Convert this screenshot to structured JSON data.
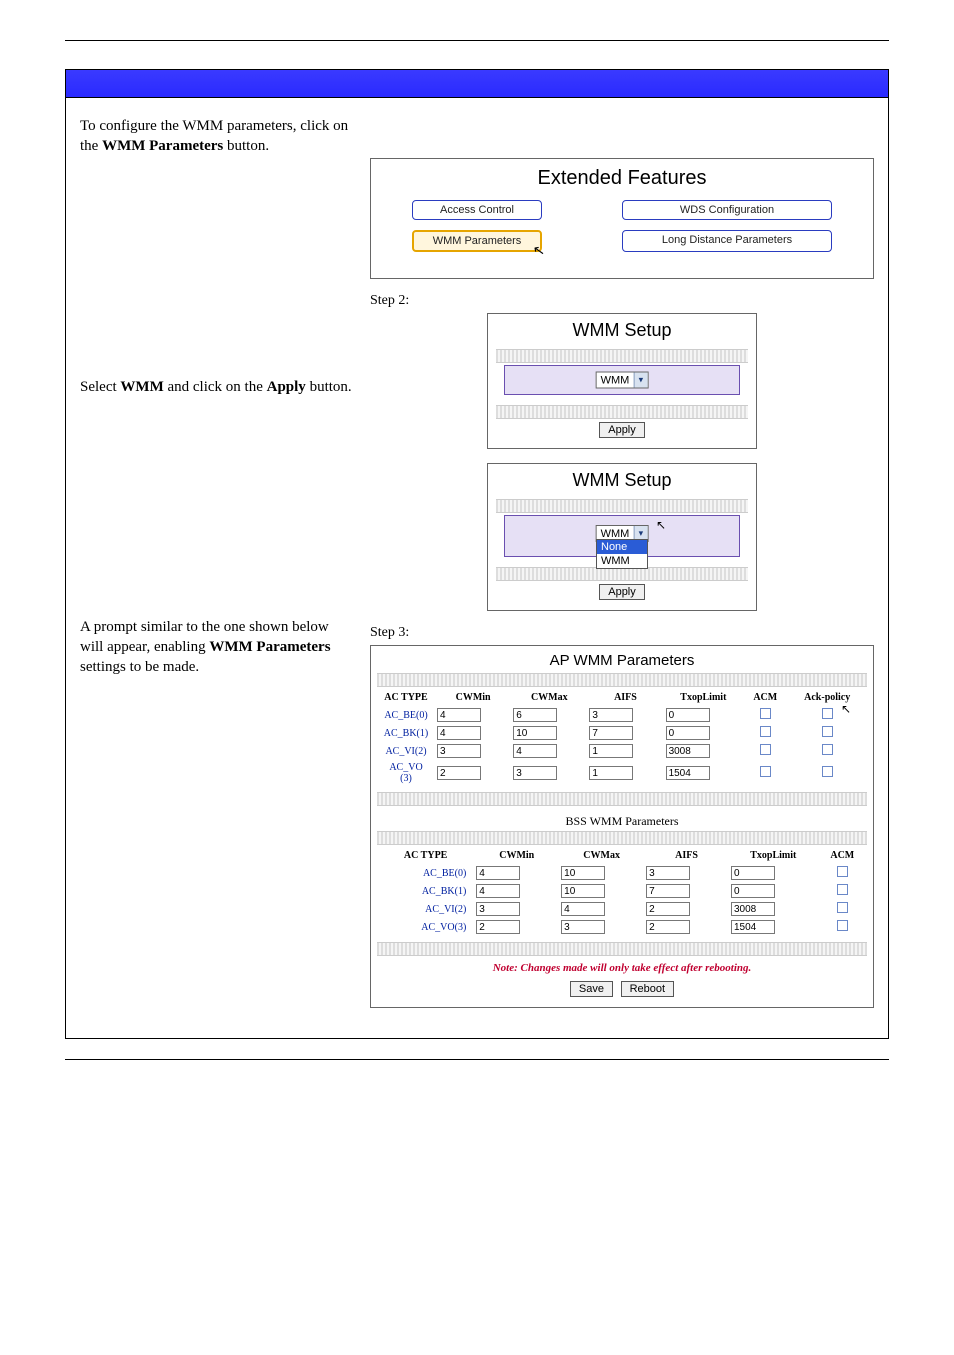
{
  "left": {
    "p1_pre": "To configure the WMM parameters, click on the ",
    "p1_b": "WMM Parameters",
    "p1_post": " button.",
    "p2_a": "Select ",
    "p2_b1": "WMM",
    "p2_mid": " and click on the ",
    "p2_b2": "Apply",
    "p2_post": " button.",
    "p3_a": "A prompt similar to the one shown below will appear, enabling ",
    "p3_b": "WMM Parameters",
    "p3_post": " settings to be made."
  },
  "ext": {
    "title": "Extended Features",
    "buttons": {
      "access": "Access Control",
      "wds": "WDS Configuration",
      "wmm": "WMM Parameters",
      "long": "Long Distance Parameters"
    }
  },
  "step2": "Step 2:",
  "step3": "Step 3:",
  "wmm": {
    "title": "WMM Setup",
    "selected": "WMM",
    "apply": "Apply",
    "opt_none": "None",
    "opt_wmm": "WMM"
  },
  "ap": {
    "title": "AP WMM Parameters",
    "headers": [
      "AC TYPE",
      "CWMin",
      "CWMax",
      "AIFS",
      "TxopLimit",
      "ACM",
      "Ack-policy"
    ],
    "rows": [
      {
        "label": "AC_BE(0)",
        "CWMin": "4",
        "CWMax": "6",
        "AIFS": "3",
        "Txop": "0"
      },
      {
        "label": "AC_BK(1)",
        "CWMin": "4",
        "CWMax": "10",
        "AIFS": "7",
        "Txop": "0"
      },
      {
        "label": "AC_VI(2)",
        "CWMin": "3",
        "CWMax": "4",
        "AIFS": "1",
        "Txop": "3008"
      },
      {
        "label": "AC_VO(3)",
        "CWMin": "2",
        "CWMax": "3",
        "AIFS": "1",
        "Txop": "1504"
      }
    ]
  },
  "bss": {
    "title": "BSS WMM Parameters",
    "headers": [
      "AC TYPE",
      "CWMin",
      "CWMax",
      "AIFS",
      "TxopLimit",
      "ACM"
    ],
    "rows": [
      {
        "label": "AC_BE(0)",
        "CWMin": "4",
        "CWMax": "10",
        "AIFS": "3",
        "Txop": "0"
      },
      {
        "label": "AC_BK(1)",
        "CWMin": "4",
        "CWMax": "10",
        "AIFS": "7",
        "Txop": "0"
      },
      {
        "label": "AC_VI(2)",
        "CWMin": "3",
        "CWMax": "4",
        "AIFS": "2",
        "Txop": "3008"
      },
      {
        "label": "AC_VO(3)",
        "CWMin": "2",
        "CWMax": "3",
        "AIFS": "2",
        "Txop": "1504"
      }
    ]
  },
  "note": "Note: Changes made will only take effect after rebooting.",
  "save": "Save",
  "reboot": "Reboot"
}
